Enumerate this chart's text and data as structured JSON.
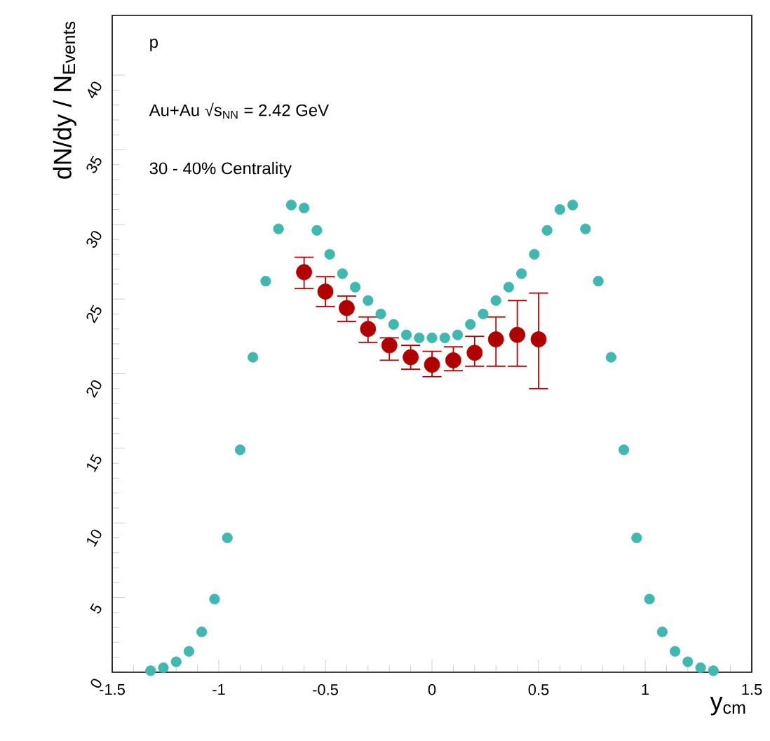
{
  "chart_data": {
    "type": "scatter",
    "xlabel": "y$_{cm}$",
    "ylabel": "dN/dy / N$_{Events}$",
    "annotations": [
      "p",
      "Au+Au √s$_{NN}$ = 2.42 GeV",
      "30 - 40% Centrality"
    ],
    "xlim": [
      -1.5,
      1.5
    ],
    "ylim": [
      0,
      44
    ],
    "xticks": [
      -1.5,
      -1,
      -0.5,
      0,
      0.5,
      1,
      1.5
    ],
    "yticks": [
      0,
      5,
      10,
      15,
      20,
      25,
      30,
      35,
      40
    ],
    "series": [
      {
        "color": "#40b8b0",
        "x": [
          -1.32,
          -1.26,
          -1.2,
          -1.14,
          -1.08,
          -1.02,
          -0.96,
          -0.9,
          -0.84,
          -0.78,
          -0.72,
          -0.66,
          -0.6,
          -0.54,
          -0.48,
          -0.42,
          -0.36,
          -0.3,
          -0.24,
          -0.18,
          -0.12,
          -0.06,
          0,
          0.06,
          0.12,
          0.18,
          0.24,
          0.3,
          0.36,
          0.42,
          0.48,
          0.54,
          0.6,
          0.66,
          0.72,
          0.78,
          0.84,
          0.9,
          0.96,
          1.02,
          1.08,
          1.14,
          1.2,
          1.26,
          1.32
        ],
        "values": [
          0.1,
          0.3,
          0.7,
          1.4,
          2.7,
          4.9,
          9.0,
          14.9,
          21.1,
          26.2,
          29.7,
          31.3,
          31.1,
          29.6,
          28.0,
          26.7,
          25.8,
          24.9,
          24.0,
          23.3,
          22.6,
          22.4,
          22.4,
          22.4,
          22.6,
          23.3,
          24.0,
          24.9,
          25.8,
          26.7,
          28.0,
          29.6,
          31.0,
          31.3,
          29.7,
          26.2,
          21.1,
          14.9,
          9.0,
          4.9,
          2.7,
          1.4,
          0.7,
          0.3,
          0.1
        ]
      },
      {
        "color": "#b00000",
        "x": [
          -0.6,
          -0.5,
          -0.4,
          -0.3,
          -0.2,
          -0.1,
          0,
          0.1,
          0.2,
          0.3,
          0.4,
          0.5
        ],
        "values": [
          26.8,
          25.5,
          24.4,
          23.0,
          21.9,
          21.1,
          20.6,
          20.9,
          21.4,
          22.3,
          22.6,
          22.3
        ],
        "errors": [
          [
            25.7,
            27.8
          ],
          [
            24.5,
            26.5
          ],
          [
            23.5,
            25.2
          ],
          [
            22.1,
            23.8
          ],
          [
            20.9,
            22.4
          ],
          [
            20.3,
            21.9
          ],
          [
            19.8,
            21.5
          ],
          [
            20.2,
            21.8
          ],
          [
            20.5,
            22.5
          ],
          [
            20.5,
            23.8
          ],
          [
            20.5,
            24.9
          ],
          [
            19.0,
            25.4
          ]
        ]
      }
    ]
  }
}
